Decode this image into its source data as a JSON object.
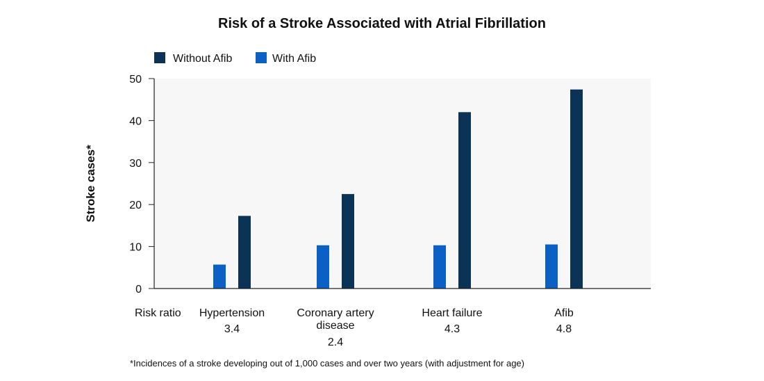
{
  "chart_data": {
    "type": "bar",
    "title": "Risk of a Stroke Associated with Atrial Fibrillation",
    "ylabel": "Stroke cases*",
    "xlabel": "",
    "ylim": [
      0,
      50
    ],
    "yticks": [
      0,
      10,
      20,
      30,
      40,
      50
    ],
    "grid": false,
    "legend_position": "top-left",
    "row_label": "Risk ratio",
    "categories": [
      {
        "label_lines": [
          "Hypertension"
        ],
        "ratio": "3.4"
      },
      {
        "label_lines": [
          "Coronary artery",
          "disease"
        ],
        "ratio": "2.4"
      },
      {
        "label_lines": [
          "Heart failure"
        ],
        "ratio": "4.3"
      },
      {
        "label_lines": [
          "Afib"
        ],
        "ratio": "4.8"
      }
    ],
    "series": [
      {
        "name": "With Afib",
        "color": "#0a60c4",
        "values": [
          5.7,
          10.3,
          10.3,
          10.5
        ]
      },
      {
        "name": "Without Afib",
        "color": "#0a3356",
        "values": [
          17.3,
          22.5,
          42.0,
          47.4
        ]
      }
    ],
    "legend": [
      {
        "name": "Without Afib",
        "color": "#0a3356"
      },
      {
        "name": "With Afib",
        "color": "#0a60c4"
      }
    ],
    "plot_background": "#f7f7f7",
    "footnote": "*Incidences of a stroke developing out of 1,000 cases and over two years (with adjustment for age)"
  }
}
